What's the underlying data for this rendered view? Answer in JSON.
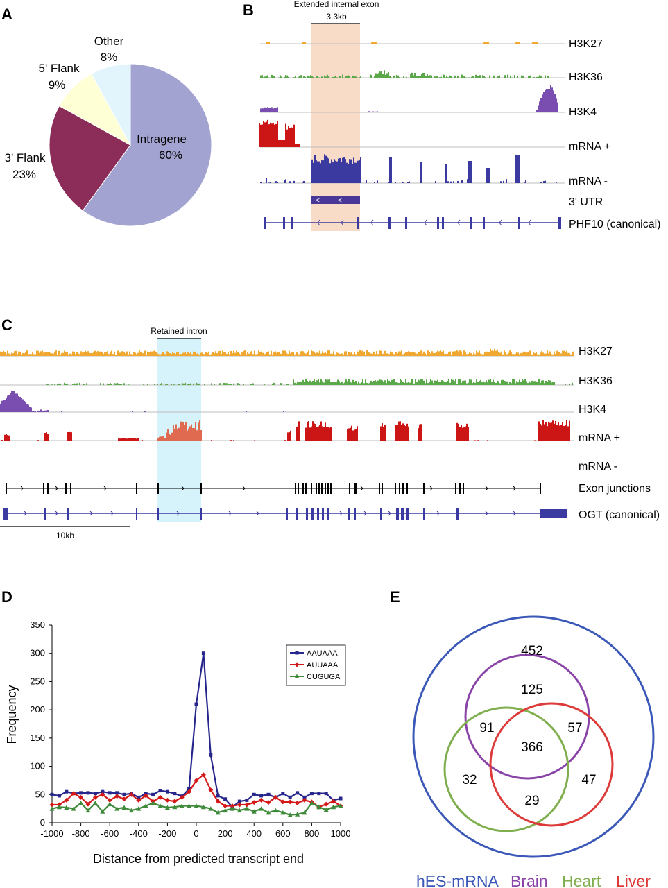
{
  "panels": {
    "A": "A",
    "B": "B",
    "C": "C",
    "D": "D",
    "E": "E"
  },
  "panel_a": {
    "slices": [
      {
        "name": "Intragene",
        "pct": 60,
        "label_name": "Intragene",
        "label_pct": "60%",
        "color": "#a3a3d1"
      },
      {
        "name": "3' Flank",
        "pct": 23,
        "label_name": "3' Flank",
        "label_pct": "23%",
        "color": "#8b2c59"
      },
      {
        "name": "5' Flank",
        "pct": 9,
        "label_name": "5' Flank",
        "label_pct": "9%",
        "color": "#ffffd6"
      },
      {
        "name": "Other",
        "pct": 8,
        "label_name": "Other",
        "label_pct": "8%",
        "color": "#e2f4fc"
      }
    ]
  },
  "panel_b": {
    "header": "Extended internal exon",
    "size": "3.3kb",
    "tracks": [
      "H3K27",
      "H3K36",
      "H3K4",
      "mRNA +",
      "mRNA -",
      "3' UTR",
      "PHF10 (canonical)"
    ],
    "colors": {
      "h3k27": "#f0a830",
      "h3k36": "#5aa84a",
      "h3k4": "#7a4db0",
      "mrna_plus": "#cc1515",
      "mrna_minus": "#3a3aa0",
      "highlight": "#f8dcc8"
    }
  },
  "panel_c": {
    "header": "Retained intron",
    "scale": "10kb",
    "tracks": [
      "H3K27",
      "H3K36",
      "H3K4",
      "mRNA +",
      "mRNA -",
      "Exon junctions",
      "OGT (canonical)"
    ],
    "colors": {
      "highlight": "#d6f2fb",
      "highlight_red": "#e06a50"
    }
  },
  "chart_data": {
    "type": "line",
    "x": [
      -1000,
      -950,
      -900,
      -850,
      -800,
      -750,
      -700,
      -650,
      -600,
      -550,
      -500,
      -450,
      -400,
      -350,
      -300,
      -250,
      -200,
      -150,
      -100,
      -50,
      0,
      50,
      100,
      150,
      200,
      250,
      300,
      350,
      400,
      450,
      500,
      550,
      600,
      650,
      700,
      750,
      800,
      850,
      900,
      950,
      1000
    ],
    "series": [
      {
        "name": "AAUAAA",
        "color": "#26268c",
        "marker": "square",
        "values": [
          50,
          48,
          55,
          52,
          53,
          53,
          52,
          55,
          53,
          53,
          50,
          52,
          45,
          52,
          50,
          57,
          55,
          52,
          47,
          60,
          210,
          300,
          120,
          48,
          42,
          28,
          38,
          40,
          50,
          48,
          50,
          45,
          52,
          45,
          53,
          45,
          52,
          52,
          52,
          40,
          43
        ]
      },
      {
        "name": "AUUAAA",
        "color": "#d41818",
        "marker": "diamond",
        "values": [
          32,
          32,
          40,
          52,
          45,
          33,
          45,
          50,
          40,
          47,
          42,
          50,
          40,
          48,
          38,
          45,
          40,
          38,
          45,
          55,
          75,
          85,
          58,
          38,
          30,
          30,
          32,
          32,
          36,
          40,
          36,
          45,
          37,
          37,
          35,
          40,
          37,
          28,
          33,
          38,
          30
        ]
      },
      {
        "name": "CUGUGA",
        "color": "#3f8a3a",
        "marker": "triangle",
        "values": [
          25,
          28,
          27,
          25,
          35,
          22,
          35,
          20,
          33,
          25,
          27,
          22,
          25,
          30,
          35,
          30,
          27,
          28,
          30,
          30,
          30,
          28,
          25,
          18,
          22,
          25,
          22,
          25,
          20,
          25,
          18,
          22,
          18,
          14,
          15,
          18,
          35,
          28,
          23,
          28,
          30
        ]
      }
    ],
    "xlabel": "Distance from predicted transcript end",
    "ylabel": "Frequency",
    "xlim": [
      -1000,
      1000
    ],
    "ylim": [
      0,
      350
    ],
    "xticks": [
      -1000,
      -800,
      -600,
      -400,
      -200,
      0,
      200,
      400,
      600,
      800,
      1000
    ],
    "yticks": [
      0,
      50,
      100,
      150,
      200,
      250,
      300,
      350
    ],
    "legend_position": "top-right",
    "grid": false
  },
  "panel_e": {
    "values": {
      "hes_only": "452",
      "brain_only": "125",
      "brain_heart": "91",
      "brain_liver": "57",
      "all_three": "366",
      "heart_only": "32",
      "liver_only": "47",
      "heart_liver": "29"
    },
    "sets": [
      {
        "label": "hES-mRNA",
        "color": "#3b58b8"
      },
      {
        "label": "Brain",
        "color": "#8a44a8"
      },
      {
        "label": "Heart",
        "color": "#7fae4e"
      },
      {
        "label": "Liver",
        "color": "#dd3a3a"
      }
    ]
  }
}
